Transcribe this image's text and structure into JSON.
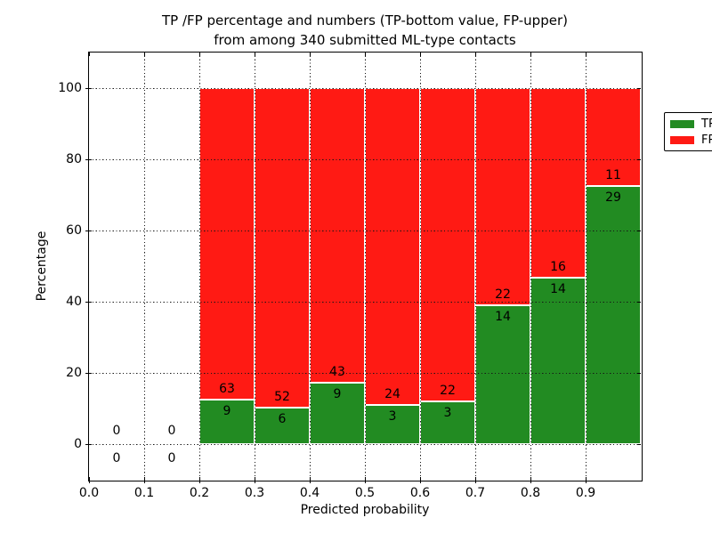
{
  "chart_data": {
    "type": "bar",
    "stacked": true,
    "title_line1": "TP /FP percentage and numbers (TP-bottom value, FP-upper)",
    "title_line2": "from among 340 submitted ML-type contacts",
    "xlabel": "Predicted probability",
    "ylabel": "Percentage",
    "total_contacts": 340,
    "xlim": [
      0.0,
      1.0
    ],
    "ylim": [
      -10,
      110
    ],
    "bin_width": 0.1,
    "x_ticks": [
      {
        "value": 0.0,
        "label": "0.0"
      },
      {
        "value": 0.1,
        "label": "0.1"
      },
      {
        "value": 0.2,
        "label": "0.2"
      },
      {
        "value": 0.3,
        "label": "0.3"
      },
      {
        "value": 0.4,
        "label": "0.4"
      },
      {
        "value": 0.5,
        "label": "0.5"
      },
      {
        "value": 0.6,
        "label": "0.6"
      },
      {
        "value": 0.7,
        "label": "0.7"
      },
      {
        "value": 0.8,
        "label": "0.8"
      },
      {
        "value": 0.9,
        "label": "0.9"
      }
    ],
    "y_ticks": [
      {
        "value": 0,
        "label": "0"
      },
      {
        "value": 20,
        "label": "20"
      },
      {
        "value": 40,
        "label": "40"
      },
      {
        "value": 60,
        "label": "60"
      },
      {
        "value": 80,
        "label": "80"
      },
      {
        "value": 100,
        "label": "100"
      }
    ],
    "grid": {
      "style": "dotted",
      "drawn_above_bars": true
    },
    "bins": [
      {
        "x_start": 0.0,
        "tp_count": 0,
        "fp_count": 0,
        "tp_pct": 0,
        "fp_pct": 0
      },
      {
        "x_start": 0.1,
        "tp_count": 0,
        "fp_count": 0,
        "tp_pct": 0,
        "fp_pct": 0
      },
      {
        "x_start": 0.2,
        "tp_count": 9,
        "fp_count": 63,
        "tp_pct": 12.5,
        "fp_pct": 87.5
      },
      {
        "x_start": 0.3,
        "tp_count": 6,
        "fp_count": 52,
        "tp_pct": 10.34,
        "fp_pct": 89.66
      },
      {
        "x_start": 0.4,
        "tp_count": 9,
        "fp_count": 43,
        "tp_pct": 17.31,
        "fp_pct": 82.69
      },
      {
        "x_start": 0.5,
        "tp_count": 3,
        "fp_count": 24,
        "tp_pct": 11.11,
        "fp_pct": 88.89
      },
      {
        "x_start": 0.6,
        "tp_count": 3,
        "fp_count": 22,
        "tp_pct": 12.0,
        "fp_pct": 88.0
      },
      {
        "x_start": 0.7,
        "tp_count": 14,
        "fp_count": 22,
        "tp_pct": 38.89,
        "fp_pct": 61.11
      },
      {
        "x_start": 0.8,
        "tp_count": 14,
        "fp_count": 16,
        "tp_pct": 46.67,
        "fp_pct": 53.33
      },
      {
        "x_start": 0.9,
        "tp_count": 29,
        "fp_count": 11,
        "tp_pct": 72.5,
        "fp_pct": 27.5
      }
    ],
    "legend": {
      "position": "upper right",
      "entries": [
        {
          "label": "TP",
          "color": "#228b22"
        },
        {
          "label": "FP",
          "color": "#ff1a14"
        }
      ]
    },
    "colors": {
      "tp": "#228b22",
      "fp": "#ff1a14",
      "bar_edge": "#ffffff",
      "grid": "#161616",
      "spine": "#000000",
      "background": "#ffffff",
      "text": "#000000"
    }
  }
}
